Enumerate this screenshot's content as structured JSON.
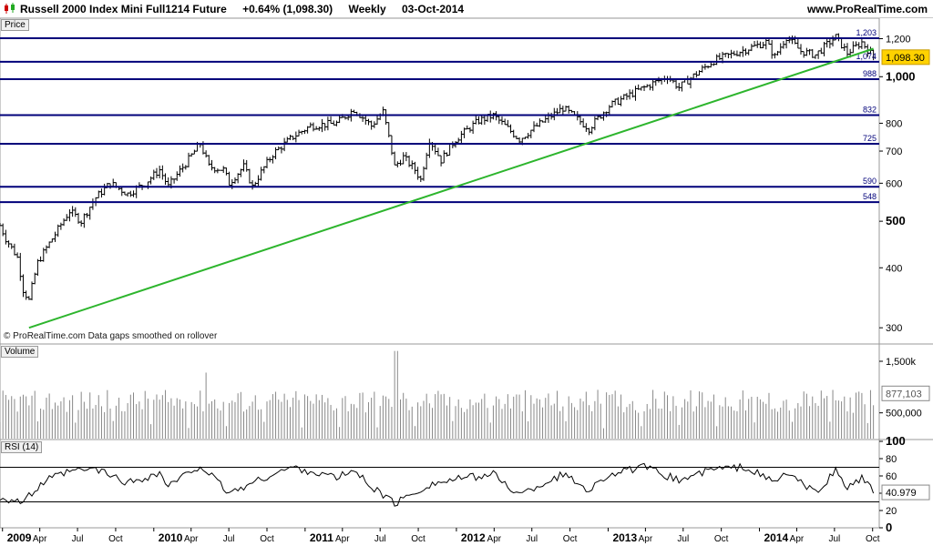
{
  "header": {
    "instrument": "Russell 2000 Index Mini Full1214 Future",
    "change": "+0.64% (1,098.30)",
    "timeframe": "Weekly",
    "date": "03-Oct-2014",
    "site": "www.ProRealTime.com"
  },
  "panels": {
    "price_label": "Price",
    "volume_label": "Volume",
    "rsi_label": "RSI (14)"
  },
  "watermark": "© ProRealTime.com  Data gaps smoothed on rollover",
  "colors": {
    "price_bars": "#000000",
    "horizontal_lines": "#00007a",
    "trendline": "#2db52d",
    "level_labels": "#00007a",
    "last_price_box": "#ffd200",
    "volume_bars": "#888888",
    "rsi_line": "#000000",
    "rsi_bands": "#000000"
  },
  "chart_data": [
    {
      "type": "candlestick",
      "panel": "price",
      "scale": "log",
      "ylim": [
        280,
        1240
      ],
      "y_ticks": [
        "300",
        "400",
        "500",
        "600",
        "700",
        "800",
        "1,000",
        "1,200"
      ],
      "x_ticks": [
        "2009",
        "Apr",
        "Jul",
        "Oct",
        "2010",
        "Apr",
        "Jul",
        "Oct",
        "2011",
        "Apr",
        "Jul",
        "Oct",
        "2012",
        "Apr",
        "Jul",
        "Oct",
        "2013",
        "Apr",
        "Jul",
        "Oct",
        "2014",
        "Apr",
        "Jul",
        "Oct"
      ],
      "x_tick_bold": [
        "2009",
        "2010",
        "2011",
        "2012",
        "2013",
        "2014"
      ],
      "x_range": [
        "2008-12-26",
        "2014-10-17"
      ],
      "price_path": [
        [
          "2008-12-26",
          490
        ],
        [
          "2009-01-09",
          460
        ],
        [
          "2009-02-06",
          420
        ],
        [
          "2009-02-20",
          360
        ],
        [
          "2009-03-06",
          342
        ],
        [
          "2009-03-27",
          410
        ],
        [
          "2009-05-08",
          470
        ],
        [
          "2009-06-12",
          525
        ],
        [
          "2009-07-10",
          500
        ],
        [
          "2009-08-14",
          560
        ],
        [
          "2009-09-18",
          600
        ],
        [
          "2009-10-30",
          570
        ],
        [
          "2009-12-11",
          600
        ],
        [
          "2010-01-15",
          640
        ],
        [
          "2010-02-05",
          590
        ],
        [
          "2010-03-19",
          660
        ],
        [
          "2010-04-23",
          725
        ],
        [
          "2010-05-14",
          650
        ],
        [
          "2010-06-18",
          640
        ],
        [
          "2010-07-02",
          600
        ],
        [
          "2010-08-06",
          650
        ],
        [
          "2010-08-27",
          590
        ],
        [
          "2010-10-15",
          690
        ],
        [
          "2010-12-03",
          750
        ],
        [
          "2011-01-14",
          790
        ],
        [
          "2011-03-18",
          800
        ],
        [
          "2011-04-29",
          855
        ],
        [
          "2011-06-10",
          790
        ],
        [
          "2011-07-08",
          845
        ],
        [
          "2011-08-05",
          650
        ],
        [
          "2011-08-26",
          680
        ],
        [
          "2011-09-23",
          640
        ],
        [
          "2011-10-07",
          610
        ],
        [
          "2011-10-28",
          740
        ],
        [
          "2011-11-25",
          670
        ],
        [
          "2011-12-30",
          740
        ],
        [
          "2012-02-24",
          810
        ],
        [
          "2012-03-30",
          830
        ],
        [
          "2012-06-01",
          740
        ],
        [
          "2012-07-13",
          790
        ],
        [
          "2012-09-14",
          860
        ],
        [
          "2012-11-16",
          780
        ],
        [
          "2013-01-04",
          870
        ],
        [
          "2013-03-29",
          950
        ],
        [
          "2013-05-24",
          1000
        ],
        [
          "2013-06-21",
          950
        ],
        [
          "2013-09-13",
          1080
        ],
        [
          "2013-11-29",
          1140
        ],
        [
          "2014-01-17",
          1180
        ],
        [
          "2014-02-07",
          1100
        ],
        [
          "2014-03-07",
          1210
        ],
        [
          "2014-04-11",
          1130
        ],
        [
          "2014-05-16",
          1110
        ],
        [
          "2014-07-04",
          1210
        ],
        [
          "2014-08-01",
          1120
        ],
        [
          "2014-09-05",
          1180
        ],
        [
          "2014-10-03",
          1098.3
        ]
      ],
      "horizontal_levels": [
        {
          "label": "1,203",
          "value": 1203
        },
        {
          "label": "1,074",
          "value": 1074
        },
        {
          "label": "988",
          "value": 988
        },
        {
          "label": "832",
          "value": 832
        },
        {
          "label": "725",
          "value": 725
        },
        {
          "label": "590",
          "value": 590
        },
        {
          "label": "548",
          "value": 548
        }
      ],
      "trendline": [
        [
          "2009-03-06",
          300
        ],
        [
          "2014-10-03",
          1124
        ]
      ],
      "last_value": "1,098.30"
    },
    {
      "type": "bar",
      "panel": "volume",
      "ylim": [
        0,
        1800000
      ],
      "y_ticks": [
        "500,000",
        "1,500k"
      ],
      "last_value": "877,103",
      "notes": "weekly volume bars, mostly 0.55M-1.0M, spike near Aug 2011"
    },
    {
      "type": "line",
      "panel": "rsi",
      "ylim": [
        0,
        100
      ],
      "y_ticks": [
        "0",
        "20",
        "40",
        "60",
        "80",
        "100"
      ],
      "bands": [
        30,
        70
      ],
      "last_value": "40.979",
      "rsi_path": [
        [
          "2008-12-26",
          35
        ],
        [
          "2009-02-20",
          30
        ],
        [
          "2009-04-17",
          55
        ],
        [
          "2009-06-12",
          65
        ],
        [
          "2009-08-14",
          68
        ],
        [
          "2009-10-30",
          52
        ],
        [
          "2010-01-15",
          63
        ],
        [
          "2010-02-05",
          48
        ],
        [
          "2010-04-23",
          72
        ],
        [
          "2010-07-02",
          40
        ],
        [
          "2010-10-15",
          62
        ],
        [
          "2010-12-03",
          70
        ],
        [
          "2011-03-18",
          58
        ],
        [
          "2011-04-29",
          66
        ],
        [
          "2011-06-10",
          48
        ],
        [
          "2011-08-05",
          28
        ],
        [
          "2011-10-28",
          50
        ],
        [
          "2011-12-30",
          56
        ],
        [
          "2012-03-30",
          62
        ],
        [
          "2012-06-01",
          38
        ],
        [
          "2012-09-14",
          62
        ],
        [
          "2012-11-16",
          44
        ],
        [
          "2013-01-04",
          62
        ],
        [
          "2013-03-29",
          70
        ],
        [
          "2013-06-21",
          55
        ],
        [
          "2013-09-13",
          68
        ],
        [
          "2013-11-29",
          70
        ],
        [
          "2014-02-07",
          52
        ],
        [
          "2014-03-07",
          64
        ],
        [
          "2014-05-16",
          40
        ],
        [
          "2014-07-04",
          66
        ],
        [
          "2014-08-01",
          46
        ],
        [
          "2014-09-05",
          58
        ],
        [
          "2014-10-03",
          41
        ]
      ]
    }
  ]
}
